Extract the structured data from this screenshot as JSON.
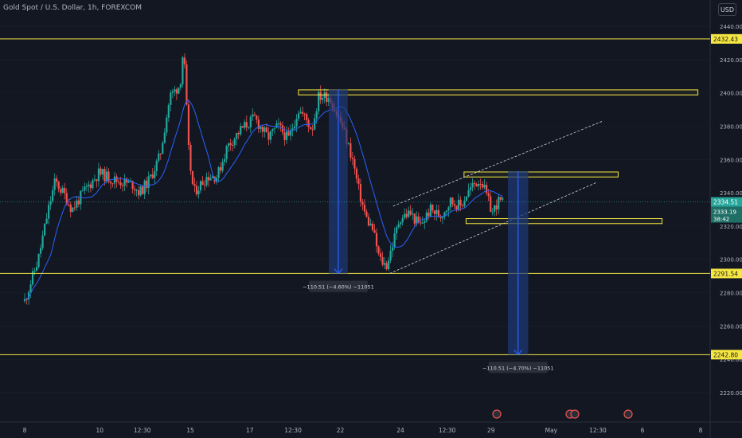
{
  "symbol_title": "Gold Spot / U.S. Dollar, 1h, FOREXCOM",
  "currency_button": "USD",
  "colors": {
    "background": "#131722",
    "grid": "#1e222d",
    "up_candle": "#26a69a",
    "down_candle": "#ef5350",
    "moving_average": "#2962ff",
    "level_lines": "#f5e642",
    "measure_fill": "#1e3a78",
    "measure_arrow": "#2962ff",
    "axis_text": "#b2b5be",
    "current_price": "#26a69a"
  },
  "chart_data": {
    "type": "candlestick",
    "y_axis": {
      "range": [
        2208,
        2450
      ],
      "tick_labels": [
        "2440.00",
        "2420.00",
        "2400.00",
        "2380.00",
        "2360.00",
        "2340.00",
        "2320.00",
        "2300.00",
        "2280.00",
        "2260.00",
        "2240.00",
        "2220.00"
      ]
    },
    "x_axis": {
      "labels": [
        {
          "label": "8",
          "t": 0
        },
        {
          "label": "10",
          "t": 0.111
        },
        {
          "label": "12:30",
          "t": 0.174
        },
        {
          "label": "15",
          "t": 0.245
        },
        {
          "label": "17",
          "t": 0.333
        },
        {
          "label": "12:30",
          "t": 0.397
        },
        {
          "label": "22",
          "t": 0.467
        },
        {
          "label": "24",
          "t": 0.556
        },
        {
          "label": "12:30",
          "t": 0.625
        },
        {
          "label": "29",
          "t": 0.69
        },
        {
          "label": "May",
          "t": 0.779
        },
        {
          "label": "12:30",
          "t": 0.848
        },
        {
          "label": "6",
          "t": 0.914
        },
        {
          "label": "8",
          "t": 1.0
        }
      ]
    },
    "price_path_anchors": [
      [
        0.0,
        2275
      ],
      [
        0.02,
        2300
      ],
      [
        0.035,
        2330
      ],
      [
        0.045,
        2347
      ],
      [
        0.06,
        2338
      ],
      [
        0.07,
        2330
      ],
      [
        0.09,
        2342
      ],
      [
        0.11,
        2352
      ],
      [
        0.13,
        2348
      ],
      [
        0.16,
        2345
      ],
      [
        0.17,
        2340
      ],
      [
        0.185,
        2348
      ],
      [
        0.2,
        2362
      ],
      [
        0.215,
        2398
      ],
      [
        0.23,
        2405
      ],
      [
        0.235,
        2428
      ],
      [
        0.243,
        2362
      ],
      [
        0.25,
        2340
      ],
      [
        0.27,
        2350
      ],
      [
        0.285,
        2350
      ],
      [
        0.3,
        2368
      ],
      [
        0.32,
        2378
      ],
      [
        0.34,
        2385
      ],
      [
        0.36,
        2373
      ],
      [
        0.375,
        2380
      ],
      [
        0.39,
        2372
      ],
      [
        0.405,
        2390
      ],
      [
        0.415,
        2385
      ],
      [
        0.425,
        2378
      ],
      [
        0.435,
        2398
      ],
      [
        0.45,
        2398
      ],
      [
        0.47,
        2380
      ],
      [
        0.485,
        2360
      ],
      [
        0.495,
        2340
      ],
      [
        0.505,
        2325
      ],
      [
        0.515,
        2318
      ],
      [
        0.525,
        2300
      ],
      [
        0.535,
        2296
      ],
      [
        0.545,
        2310
      ],
      [
        0.555,
        2325
      ],
      [
        0.57,
        2328
      ],
      [
        0.585,
        2320
      ],
      [
        0.6,
        2330
      ],
      [
        0.615,
        2326
      ],
      [
        0.63,
        2335
      ],
      [
        0.645,
        2332
      ],
      [
        0.655,
        2340
      ],
      [
        0.665,
        2345
      ],
      [
        0.675,
        2348
      ],
      [
        0.685,
        2336
      ],
      [
        0.692,
        2328
      ],
      [
        0.7,
        2335
      ],
      [
        0.707,
        2334
      ]
    ],
    "horizontal_levels": [
      {
        "price": 2432.43,
        "label": "2432.43"
      },
      {
        "price": 2291.54,
        "label": "2291.54"
      },
      {
        "price": 2242.8,
        "label": "2242.80"
      }
    ],
    "zones": [
      {
        "t0": 0.405,
        "t1": 0.996,
        "p_top": 2401.8,
        "p_bottom": 2398.8
      },
      {
        "t0": 0.65,
        "t1": 0.878,
        "p_top": 2352.5,
        "p_bottom": 2349.5
      },
      {
        "t0": 0.653,
        "t1": 0.943,
        "p_top": 2324.5,
        "p_bottom": 2321.5
      }
    ],
    "channel": {
      "lower": {
        "t0": 0.54,
        "p0": 2291.5,
        "t1": 0.845,
        "p1": 2346
      },
      "upper": {
        "t0": 0.545,
        "p0": 2332,
        "t1": 0.855,
        "p1": 2383
      }
    },
    "measurements": [
      {
        "t0": 0.45,
        "t1": 0.478,
        "p_from": 2402,
        "p_to": 2291.5,
        "label": "−110.51 (−4.60%) −11051"
      },
      {
        "t0": 0.715,
        "t1": 0.745,
        "p_from": 2353,
        "p_to": 2242.8,
        "label": "−110.51 (−4.70%) −11051"
      }
    ],
    "current_price": {
      "price": 2334.51,
      "label": "2334.51"
    },
    "ma_value": {
      "price": 2333.19,
      "label": "2333.19"
    },
    "countdown": "38:42"
  }
}
